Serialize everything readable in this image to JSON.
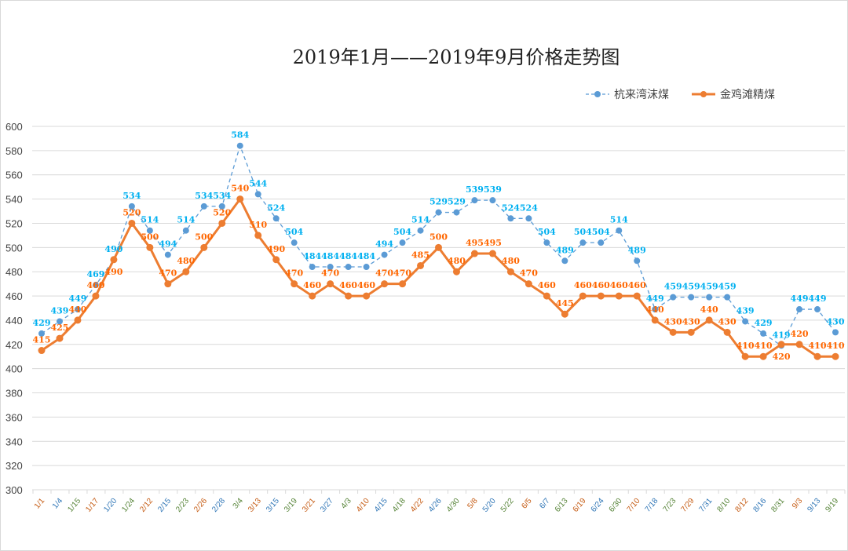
{
  "chart_data": {
    "type": "line",
    "title": "2019年1月——2019年9月价格走势图",
    "xlabel": "",
    "ylabel": "",
    "ylim": [
      300,
      600
    ],
    "yticks": [
      300,
      320,
      340,
      360,
      380,
      400,
      420,
      440,
      460,
      480,
      500,
      520,
      540,
      560,
      580,
      600
    ],
    "grid": true,
    "legend_position": "top-right",
    "categories": [
      "1/1",
      "1/4",
      "1/15",
      "1/17",
      "1/20",
      "1/24",
      "2/12",
      "2/15",
      "2/23",
      "2/26",
      "2/28",
      "3/4",
      "3/13",
      "3/15",
      "3/19",
      "3/21",
      "3/27",
      "4/3",
      "4/10",
      "4/15",
      "4/18",
      "4/22",
      "4/26",
      "4/30",
      "5/8",
      "5/20",
      "5/22",
      "6/5",
      "6/7",
      "6/13",
      "6/19",
      "6/24",
      "6/30",
      "7/10",
      "7/18",
      "7/23",
      "7/29",
      "7/31",
      "8/10",
      "8/12",
      "8/16",
      "8/31",
      "9/3",
      "9/13",
      "9/19"
    ],
    "series": [
      {
        "name": "杭来湾沫煤",
        "color": "#5b9bd5",
        "label_color": "#00b0f0",
        "style": "dashed",
        "values": [
          429,
          439,
          449,
          469,
          490,
          534,
          514,
          494,
          514,
          534,
          534,
          584,
          544,
          524,
          504,
          484,
          484,
          484,
          484,
          494,
          504,
          514,
          529,
          529,
          539,
          539,
          524,
          524,
          504,
          489,
          504,
          504,
          514,
          489,
          449,
          459,
          459,
          459,
          459,
          439,
          429,
          419,
          449,
          449,
          430
        ]
      },
      {
        "name": "金鸡滩精煤",
        "color": "#ed7d31",
        "label_color": "#ff6600",
        "style": "solid",
        "values": [
          415,
          425,
          440,
          460,
          490,
          520,
          500,
          470,
          480,
          500,
          520,
          540,
          510,
          490,
          470,
          460,
          470,
          460,
          460,
          470,
          470,
          485,
          500,
          480,
          495,
          495,
          480,
          470,
          460,
          445,
          460,
          460,
          460,
          460,
          440,
          430,
          430,
          440,
          430,
          410,
          410,
          420,
          420,
          410,
          410
        ]
      }
    ]
  }
}
